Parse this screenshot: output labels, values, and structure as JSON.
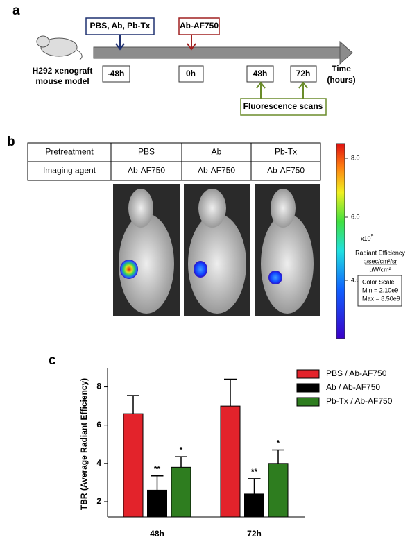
{
  "panel_a": {
    "label": "a",
    "pretreatment": "PBS, Ab, Pb-Tx",
    "agent": "Ab-AF750",
    "model": [
      "H292 xenograft",
      "mouse model"
    ],
    "timepoints": [
      "-48h",
      "0h",
      "48h",
      "72h"
    ],
    "axis": [
      "Time",
      "(hours)"
    ],
    "scans": "Fluorescence scans"
  },
  "panel_b": {
    "label": "b",
    "table": {
      "rows": [
        [
          "Pretreatment",
          "PBS",
          "Ab",
          "Pb-Tx"
        ],
        [
          "Imaging agent",
          "Ab-AF750",
          "Ab-AF750",
          "Ab-AF750"
        ]
      ]
    },
    "colorbar": {
      "ticks": [
        "8.0",
        "6.0",
        "4.0"
      ],
      "multiplier": "x10",
      "exponent": "9",
      "title": "Radiant Efficiency",
      "unit_top": "p/sec/cm²/sr",
      "unit_bottom": "μW/cm²",
      "scale_title": "Color Scale",
      "min": "Min = 2.10e9",
      "max": "Max = 8.50e9"
    }
  },
  "chart_data": {
    "type": "bar",
    "label": "c",
    "y_label": "TBR (Average Radiant Efficiency)",
    "categories": [
      "48h",
      "72h"
    ],
    "series": [
      {
        "name": "PBS / Ab-AF750",
        "color": "#e3232b",
        "values": [
          6.6,
          7.0
        ],
        "errors": [
          0.95,
          1.4
        ]
      },
      {
        "name": "Ab / Ab-AF750",
        "color": "#000000",
        "values": [
          2.6,
          2.4
        ],
        "errors": [
          0.75,
          0.8
        ],
        "annotations": [
          "**",
          "**"
        ]
      },
      {
        "name": "Pb-Tx / Ab-AF750",
        "color": "#2e7d1f",
        "values": [
          3.8,
          4.0
        ],
        "errors": [
          0.55,
          0.7
        ],
        "annotations": [
          "*",
          "*"
        ]
      }
    ],
    "ylim": [
      1.2,
      9
    ],
    "yticks": [
      2,
      4,
      6,
      8
    ]
  }
}
